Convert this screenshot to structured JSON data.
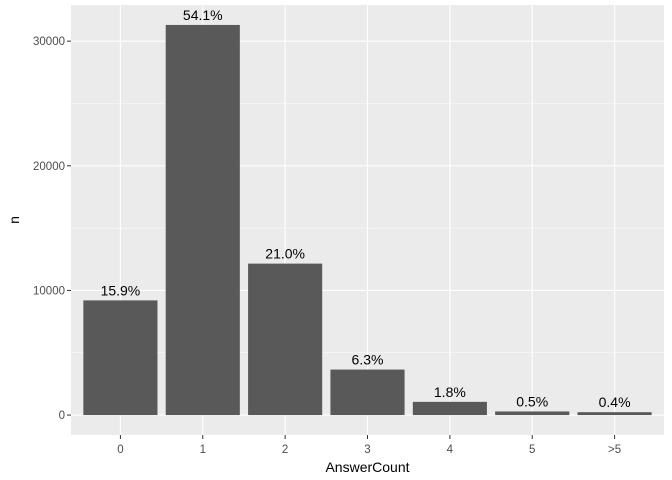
{
  "chart_data": {
    "type": "bar",
    "categories": [
      "0",
      "1",
      "2",
      "3",
      "4",
      "5",
      ">5"
    ],
    "values": [
      9200,
      31300,
      12150,
      3650,
      1060,
      290,
      230
    ],
    "labels": [
      "15.9%",
      "54.1%",
      "21.0%",
      "6.3%",
      "1.8%",
      "0.5%",
      "0.4%"
    ],
    "xlabel": "AnswerCount",
    "ylabel": "n",
    "ylim": [
      -1600,
      32900
    ],
    "yticks": [
      0,
      10000,
      20000,
      30000
    ],
    "ytick_labels": [
      "0",
      "10000",
      "20000",
      "30000"
    ],
    "grid": true,
    "colors": {
      "panel": "#ebebeb",
      "grid_major": "#ffffff",
      "bar": "#595959",
      "tick": "#333333"
    }
  }
}
